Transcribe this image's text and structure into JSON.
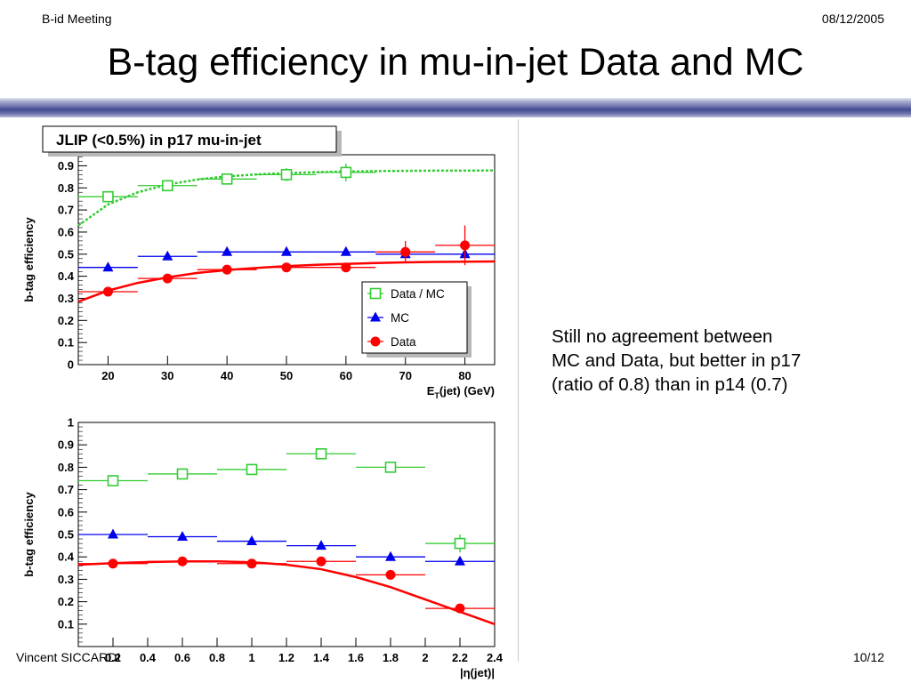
{
  "header": {
    "left": "B-id Meeting",
    "right": "08/12/2005"
  },
  "title": "B-tag efficiency in mu-in-jet Data and MC",
  "footer": {
    "left": "Vincent SICCARDI",
    "right": "10/12"
  },
  "note_lines": [
    "Still no agreement between",
    "MC and Data, but better in p17",
    "(ratio of 0.8) than in p14 (0.7)"
  ],
  "colors": {
    "data": "#ff0000",
    "mc": "#0000ee",
    "ratio": "#33cc33",
    "bar": "#434b91"
  },
  "chart_data": [
    {
      "type": "scatter",
      "title": "JLIP (<0.5%) in p17 mu-in-jet",
      "xlabel": "E_T(jet) (GeV)",
      "ylabel": "b-tag efficiency",
      "xlim": [
        15,
        85
      ],
      "ylim": [
        0,
        0.95
      ],
      "xticks": [
        20,
        30,
        40,
        50,
        60,
        70,
        80
      ],
      "yticks": [
        0,
        0.1,
        0.2,
        0.3,
        0.4,
        0.5,
        0.6,
        0.7,
        0.8,
        0.9
      ],
      "legend": {
        "position": "right-middle",
        "entries": [
          "Data / MC",
          "MC",
          "Data"
        ]
      },
      "series": [
        {
          "name": "Data / MC",
          "marker": "open-square",
          "color": "#33cc33",
          "x": [
            20,
            30,
            40,
            50,
            60
          ],
          "xerr": [
            5,
            5,
            5,
            5,
            5
          ],
          "y": [
            0.76,
            0.81,
            0.84,
            0.86,
            0.87
          ],
          "yerr": [
            0.02,
            0.02,
            0.02,
            0.03,
            0.04
          ],
          "fit": {
            "x": [
              15,
              20,
              25,
              30,
              35,
              40,
              45,
              50,
              55,
              60,
              65,
              70,
              75,
              80,
              85
            ],
            "y": [
              0.63,
              0.725,
              0.78,
              0.815,
              0.838,
              0.852,
              0.861,
              0.867,
              0.871,
              0.874,
              0.876,
              0.877,
              0.878,
              0.878,
              0.879
            ]
          }
        },
        {
          "name": "MC",
          "marker": "triangle",
          "color": "#0000ee",
          "x": [
            20,
            30,
            40,
            50,
            60,
            70,
            80
          ],
          "xerr": [
            5,
            5,
            5,
            5,
            5,
            5,
            5
          ],
          "y": [
            0.44,
            0.49,
            0.51,
            0.51,
            0.51,
            0.5,
            0.5
          ],
          "yerr": [
            0.01,
            0.01,
            0.01,
            0.01,
            0.01,
            0.01,
            0.01
          ]
        },
        {
          "name": "Data",
          "marker": "circle",
          "color": "#ff0000",
          "x": [
            20,
            30,
            40,
            50,
            60,
            70,
            80
          ],
          "xerr": [
            5,
            5,
            5,
            5,
            5,
            5,
            5
          ],
          "y": [
            0.33,
            0.39,
            0.43,
            0.44,
            0.44,
            0.51,
            0.54
          ],
          "yerr": [
            0.02,
            0.02,
            0.02,
            0.02,
            0.02,
            0.05,
            0.09
          ],
          "fit": {
            "x": [
              15,
              20,
              25,
              30,
              35,
              40,
              45,
              50,
              55,
              60,
              65,
              70,
              75,
              80,
              85
            ],
            "y": [
              0.285,
              0.335,
              0.37,
              0.395,
              0.415,
              0.428,
              0.438,
              0.446,
              0.452,
              0.456,
              0.46,
              0.463,
              0.465,
              0.466,
              0.467
            ]
          }
        }
      ]
    },
    {
      "type": "scatter",
      "title": "",
      "xlabel": "|η(jet)|",
      "ylabel": "b-tag efficiency",
      "xlim": [
        0,
        2.4
      ],
      "ylim": [
        0,
        1
      ],
      "xticks": [
        0.2,
        0.4,
        0.6,
        0.8,
        1,
        1.2,
        1.4,
        1.6,
        1.8,
        2,
        2.2,
        2.4
      ],
      "yticks": [
        0.1,
        0.2,
        0.3,
        0.4,
        0.5,
        0.6,
        0.7,
        0.8,
        0.9,
        1
      ],
      "series": [
        {
          "name": "Data / MC",
          "marker": "open-square",
          "color": "#33cc33",
          "x": [
            0.2,
            0.6,
            1.0,
            1.4,
            1.8,
            2.2
          ],
          "xerr": [
            0.2,
            0.2,
            0.2,
            0.2,
            0.2,
            0.2
          ],
          "y": [
            0.74,
            0.77,
            0.79,
            0.86,
            0.8,
            0.46
          ],
          "yerr": [
            0.02,
            0.02,
            0.02,
            0.02,
            0.02,
            0.04
          ]
        },
        {
          "name": "MC",
          "marker": "triangle",
          "color": "#0000ee",
          "x": [
            0.2,
            0.6,
            1.0,
            1.4,
            1.8,
            2.2
          ],
          "xerr": [
            0.2,
            0.2,
            0.2,
            0.2,
            0.2,
            0.2
          ],
          "y": [
            0.5,
            0.49,
            0.47,
            0.45,
            0.4,
            0.38
          ],
          "yerr": [
            0.005,
            0.005,
            0.005,
            0.005,
            0.005,
            0.005
          ]
        },
        {
          "name": "Data",
          "marker": "circle",
          "color": "#ff0000",
          "x": [
            0.2,
            0.6,
            1.0,
            1.4,
            1.8,
            2.2
          ],
          "xerr": [
            0.2,
            0.2,
            0.2,
            0.2,
            0.2,
            0.2
          ],
          "y": [
            0.37,
            0.38,
            0.37,
            0.38,
            0.32,
            0.17
          ],
          "yerr": [
            0.01,
            0.01,
            0.01,
            0.02,
            0.02,
            0.02
          ],
          "fit": {
            "x": [
              0,
              0.2,
              0.4,
              0.6,
              0.8,
              1.0,
              1.2,
              1.4,
              1.6,
              1.8,
              2.0,
              2.2,
              2.4
            ],
            "y": [
              0.365,
              0.372,
              0.377,
              0.38,
              0.38,
              0.376,
              0.365,
              0.345,
              0.31,
              0.265,
              0.21,
              0.155,
              0.1
            ]
          }
        }
      ]
    }
  ]
}
